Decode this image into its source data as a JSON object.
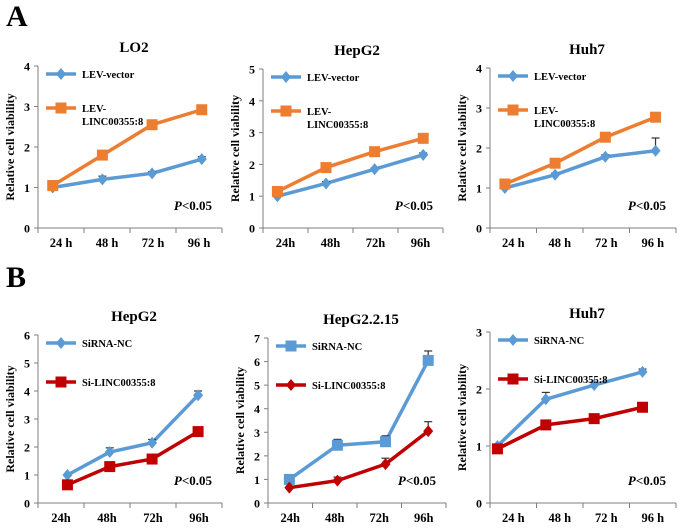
{
  "panel_labels": [
    "A",
    "B"
  ],
  "colors": {
    "blue": "#5B9BD5",
    "orange": "#ED7D31",
    "red": "#C00000",
    "axis": "#7f7f7f",
    "text": "#000000"
  },
  "chart_data": [
    {
      "type": "line",
      "panel": "A",
      "title": "LO2",
      "ylabel": "Relative cell viability",
      "xlabel": "",
      "ylim": [
        0,
        4
      ],
      "yticks": [
        "0",
        "1",
        "2",
        "3",
        "4"
      ],
      "categories": [
        "24 h",
        "48 h",
        "72 h",
        "96 h"
      ],
      "pvalue": {
        "italic": "P",
        "rest": "<0.05"
      },
      "series": [
        {
          "name": "LEV-vector",
          "legend_lines": [
            "LEV-vector"
          ],
          "color": "#5B9BD5",
          "marker": "diamond",
          "values": [
            1.0,
            1.2,
            1.35,
            1.7
          ],
          "err": [
            0,
            0.08,
            0.04,
            0.06
          ]
        },
        {
          "name": "LEV-LINC00355:8",
          "legend_lines": [
            "LEV-",
            "LINC00355:8"
          ],
          "color": "#ED7D31",
          "marker": "square",
          "values": [
            1.05,
            1.8,
            2.55,
            2.92
          ],
          "err": [
            0,
            0,
            0.08,
            0.05
          ]
        }
      ]
    },
    {
      "type": "line",
      "panel": "A",
      "title": "HepG2",
      "ylabel": "Relative cell viability",
      "xlabel": "",
      "ylim": [
        0,
        5
      ],
      "yticks": [
        "0",
        "1",
        "2",
        "3",
        "4",
        "5"
      ],
      "categories": [
        "24h",
        "48h",
        "72h",
        "96h"
      ],
      "pvalue": {
        "italic": "P",
        "rest": "<0.05"
      },
      "series": [
        {
          "name": "LEV-vector",
          "legend_lines": [
            "LEV-vector"
          ],
          "color": "#5B9BD5",
          "marker": "diamond",
          "values": [
            1.0,
            1.4,
            1.85,
            2.3
          ],
          "err": [
            0,
            0.06,
            0.04,
            0.06
          ]
        },
        {
          "name": "LEV-LINC00355:8",
          "legend_lines": [
            "LEV-",
            "LINC00355:8"
          ],
          "color": "#ED7D31",
          "marker": "square",
          "values": [
            1.15,
            1.9,
            2.4,
            2.82
          ],
          "err": [
            0,
            0.1,
            0.04,
            0.05
          ]
        }
      ]
    },
    {
      "type": "line",
      "panel": "A",
      "title": "Huh7",
      "ylabel": "Relative cell viability",
      "xlabel": "",
      "ylim": [
        0,
        4
      ],
      "yticks": [
        "0",
        "1",
        "2",
        "3",
        "4"
      ],
      "categories": [
        "24 h",
        "48 h",
        "72 h",
        "96 h"
      ],
      "pvalue": {
        "italic": "P",
        "rest": "<0.05"
      },
      "series": [
        {
          "name": "LEV-vector",
          "legend_lines": [
            "LEV-vector"
          ],
          "color": "#5B9BD5",
          "marker": "diamond",
          "values": [
            1.0,
            1.33,
            1.78,
            1.93
          ],
          "err": [
            0,
            0.04,
            0.05,
            0.32
          ]
        },
        {
          "name": "LEV-LINC00355:8",
          "legend_lines": [
            "LEV-",
            "LINC00355:8"
          ],
          "color": "#ED7D31",
          "marker": "square",
          "values": [
            1.1,
            1.62,
            2.27,
            2.77
          ],
          "err": [
            0,
            0.04,
            0.05,
            0.05
          ]
        }
      ]
    },
    {
      "type": "line",
      "panel": "B",
      "title": "HepG2",
      "ylabel": "Relative cell viability",
      "xlabel": "",
      "ylim": [
        0,
        6
      ],
      "yticks": [
        "0",
        "1",
        "2",
        "3",
        "4",
        "5",
        "6"
      ],
      "categories": [
        "24h",
        "48h",
        "72h",
        "96h"
      ],
      "pvalue": {
        "italic": "P",
        "rest": "<0.05"
      },
      "series": [
        {
          "name": "SiRNA-NC",
          "legend_lines": [
            "SiRNA-NC"
          ],
          "color": "#5B9BD5",
          "marker": "diamond",
          "values": [
            1.0,
            1.82,
            2.15,
            3.85
          ],
          "err": [
            0,
            0.15,
            0.12,
            0.15
          ]
        },
        {
          "name": "Si-LINC00355:8",
          "legend_lines": [
            "Si-LINC00355:8"
          ],
          "color": "#C00000",
          "marker": "square",
          "values": [
            0.65,
            1.3,
            1.57,
            2.55
          ],
          "err": [
            0,
            0.06,
            0.06,
            0.08
          ]
        }
      ]
    },
    {
      "type": "line",
      "panel": "B",
      "title": "HepG2.2.15",
      "ylabel": "Relative cell viability",
      "xlabel": "",
      "ylim": [
        0,
        7
      ],
      "yticks": [
        "0",
        "1",
        "2",
        "3",
        "4",
        "5",
        "6",
        "7"
      ],
      "categories": [
        "24h",
        "48h",
        "72h",
        "96h"
      ],
      "pvalue": {
        "italic": "P",
        "rest": "<0.05"
      },
      "series": [
        {
          "name": "SiRNA-NC",
          "legend_lines": [
            "SiRNA-NC"
          ],
          "color": "#5B9BD5",
          "marker": "square",
          "values": [
            1.0,
            2.45,
            2.6,
            6.05
          ],
          "err": [
            0,
            0.25,
            0.25,
            0.4
          ]
        },
        {
          "name": "Si-LINC00355:8",
          "legend_lines": [
            "Si-LINC00355:8"
          ],
          "color": "#C00000",
          "marker": "diamond",
          "values": [
            0.65,
            0.95,
            1.65,
            3.05
          ],
          "err": [
            0,
            0.15,
            0.25,
            0.4
          ]
        }
      ]
    },
    {
      "type": "line",
      "panel": "B",
      "title": "Huh7",
      "ylabel": "Relative cell viability",
      "xlabel": "",
      "ylim": [
        0,
        3
      ],
      "yticks": [
        "0",
        "1",
        "2",
        "3"
      ],
      "categories": [
        "24 h",
        "48 h",
        "72 h",
        "96 h"
      ],
      "pvalue": {
        "italic": "P",
        "rest": "<0.05"
      },
      "series": [
        {
          "name": "SiRNA-NC",
          "legend_lines": [
            "SiRNA-NC"
          ],
          "color": "#5B9BD5",
          "marker": "diamond",
          "values": [
            1.0,
            1.82,
            2.07,
            2.3
          ],
          "err": [
            0,
            0.12,
            0.05,
            0.05
          ]
        },
        {
          "name": "Si-LINC00355:8",
          "legend_lines": [
            "Si-LINC00355:8"
          ],
          "color": "#C00000",
          "marker": "square",
          "values": [
            0.95,
            1.37,
            1.48,
            1.68
          ],
          "err": [
            0,
            0.04,
            0.05,
            0.05
          ]
        }
      ]
    }
  ]
}
